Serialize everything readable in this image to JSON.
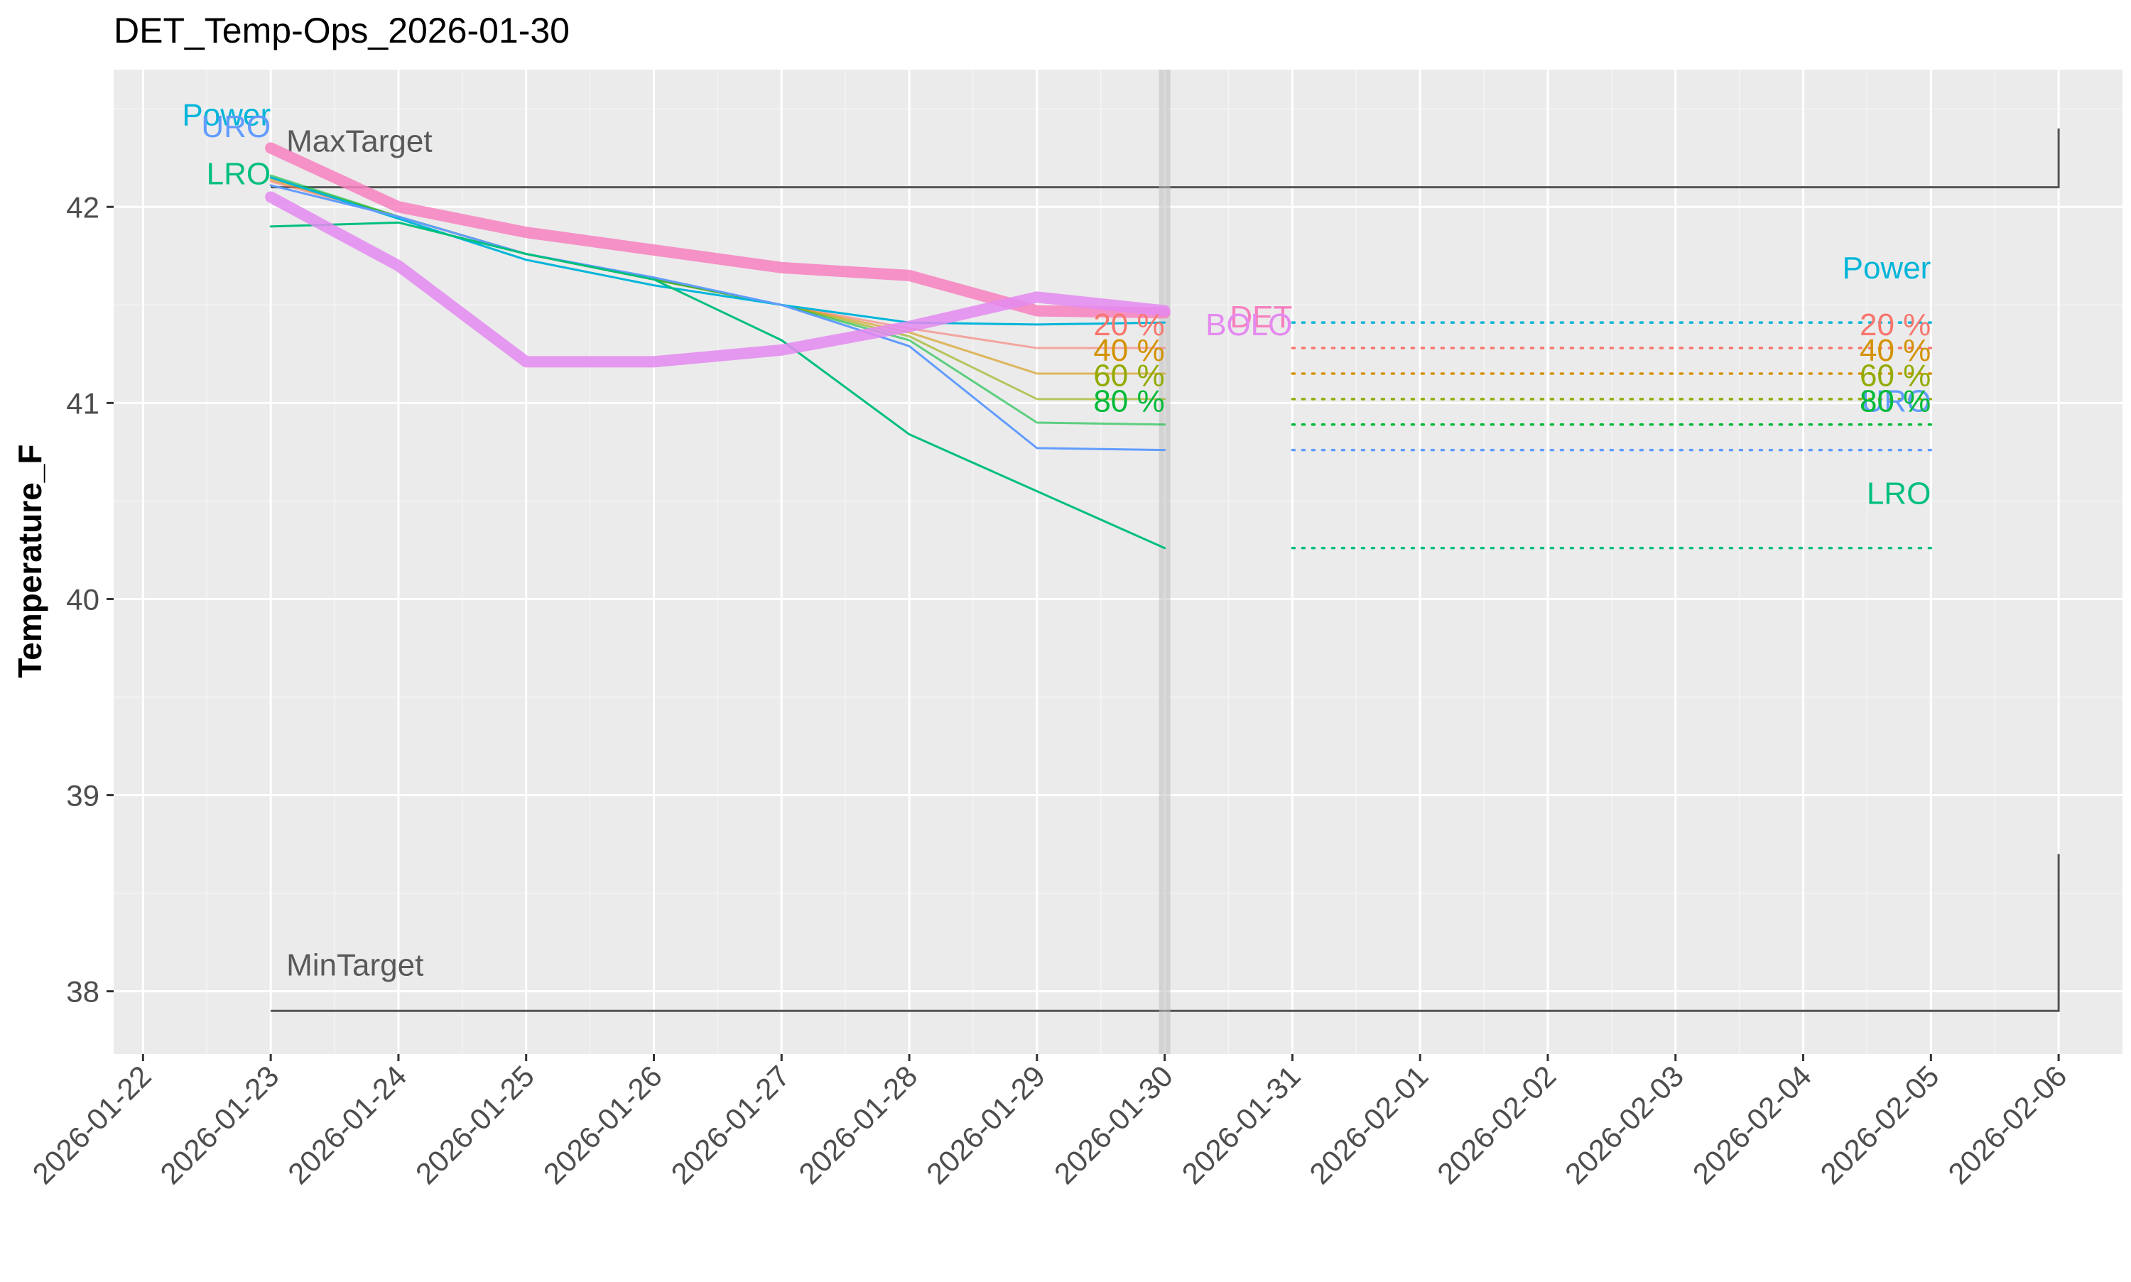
{
  "chart_data": {
    "type": "line",
    "title": "DET_Temp-Ops_2026-01-30",
    "xlabel": "",
    "ylabel": "Temperature_F",
    "x_ticks": [
      "2026-01-22",
      "2026-01-23",
      "2026-01-24",
      "2026-01-25",
      "2026-01-26",
      "2026-01-27",
      "2026-01-28",
      "2026-01-29",
      "2026-01-30",
      "2026-01-31",
      "2026-02-01",
      "2026-02-02",
      "2026-02-03",
      "2026-02-04",
      "2026-02-05",
      "2026-02-06"
    ],
    "y_ticks": [
      38,
      39,
      40,
      41,
      42
    ],
    "xlim": [
      "2026-01-21.77",
      "2026-02-06.5"
    ],
    "ylim": [
      37.68,
      42.7
    ],
    "x_tick_angle": -45,
    "grid": true,
    "legend": "none",
    "current_date": "2026-01-30",
    "colors": {
      "panel_bg": "#EBEBEB",
      "grid_major": "#FFFFFF",
      "grid_minor": "#F5F5F5",
      "DET": "#F781BF",
      "BOLO": "#E48AF0",
      "Power": "#00B5D9",
      "URO": "#619CFF",
      "LRO": "#00BF7D",
      "20 %": "#F8766D",
      "40 %": "#D39200",
      "60 %": "#93AA00",
      "80 %": "#00BA38",
      "target": "#555555",
      "target_label": "#595959"
    },
    "series": [
      {
        "name": "DET",
        "key": "DET",
        "style": "thick",
        "x": [
          "2026-01-23",
          "2026-01-24",
          "2026-01-25",
          "2026-01-26",
          "2026-01-27",
          "2026-01-28",
          "2026-01-29",
          "2026-01-30"
        ],
        "values": [
          42.3,
          42.0,
          41.87,
          41.78,
          41.69,
          41.65,
          41.47,
          41.46
        ]
      },
      {
        "name": "BOLO",
        "key": "BOLO",
        "style": "thick",
        "x": [
          "2026-01-23",
          "2026-01-24",
          "2026-01-25",
          "2026-01-26",
          "2026-01-27",
          "2026-01-28",
          "2026-01-29",
          "2026-01-30"
        ],
        "values": [
          42.05,
          41.7,
          41.21,
          41.21,
          41.27,
          41.39,
          41.54,
          41.47
        ]
      },
      {
        "name": "Power",
        "key": "Power",
        "style": "thin",
        "x": [
          "2026-01-23",
          "2026-01-24",
          "2026-01-25",
          "2026-01-26",
          "2026-01-27",
          "2026-01-28",
          "2026-01-29",
          "2026-01-30"
        ],
        "values": [
          42.15,
          41.94,
          41.73,
          41.6,
          41.5,
          41.41,
          41.4,
          41.41
        ]
      },
      {
        "name": "URO",
        "key": "URO",
        "style": "thin",
        "x": [
          "2026-01-23",
          "2026-01-24",
          "2026-01-25",
          "2026-01-26",
          "2026-01-27",
          "2026-01-28",
          "2026-01-29",
          "2026-01-30"
        ],
        "values": [
          42.11,
          41.95,
          41.76,
          41.64,
          41.5,
          41.29,
          40.77,
          40.76
        ]
      },
      {
        "name": "LRO",
        "key": "LRO",
        "style": "thin",
        "x": [
          "2026-01-23",
          "2026-01-24",
          "2026-01-25",
          "2026-01-26",
          "2026-01-27",
          "2026-01-28",
          "2026-01-29",
          "2026-01-30"
        ],
        "values": [
          41.9,
          41.92,
          41.76,
          41.63,
          41.32,
          40.84,
          40.55,
          40.26
        ]
      },
      {
        "name": "20 %",
        "key": "20 %",
        "style": "thin-faded",
        "x": [
          "2026-01-23",
          "2026-01-24",
          "2026-01-25",
          "2026-01-26",
          "2026-01-27",
          "2026-01-28",
          "2026-01-29",
          "2026-01-30"
        ],
        "values": [
          42.13,
          41.95,
          41.76,
          41.63,
          41.5,
          41.38,
          41.28,
          41.28
        ]
      },
      {
        "name": "40 %",
        "key": "40 %",
        "style": "thin-faded",
        "x": [
          "2026-01-23",
          "2026-01-24",
          "2026-01-25",
          "2026-01-26",
          "2026-01-27",
          "2026-01-28",
          "2026-01-29",
          "2026-01-30"
        ],
        "values": [
          42.14,
          41.95,
          41.76,
          41.63,
          41.5,
          41.36,
          41.15,
          41.15
        ]
      },
      {
        "name": "60 %",
        "key": "60 %",
        "style": "thin-faded",
        "x": [
          "2026-01-23",
          "2026-01-24",
          "2026-01-25",
          "2026-01-26",
          "2026-01-27",
          "2026-01-28",
          "2026-01-29",
          "2026-01-30"
        ],
        "values": [
          42.15,
          41.95,
          41.76,
          41.63,
          41.5,
          41.34,
          41.02,
          41.02
        ]
      },
      {
        "name": "80 %",
        "key": "80 %",
        "style": "thin-faded",
        "x": [
          "2026-01-23",
          "2026-01-24",
          "2026-01-25",
          "2026-01-26",
          "2026-01-27",
          "2026-01-28",
          "2026-01-29",
          "2026-01-30"
        ],
        "values": [
          42.16,
          41.95,
          41.76,
          41.63,
          41.5,
          41.32,
          40.9,
          40.89
        ]
      }
    ],
    "forecasts": [
      {
        "key": "Power",
        "x": [
          "2026-01-31",
          "2026-02-05"
        ],
        "value": 41.41
      },
      {
        "key": "20 %",
        "x": [
          "2026-01-31",
          "2026-02-05"
        ],
        "value": 41.28
      },
      {
        "key": "40 %",
        "x": [
          "2026-01-31",
          "2026-02-05"
        ],
        "value": 41.15
      },
      {
        "key": "60 %",
        "x": [
          "2026-01-31",
          "2026-02-05"
        ],
        "value": 41.02
      },
      {
        "key": "80 %",
        "x": [
          "2026-01-31",
          "2026-02-05"
        ],
        "value": 40.89
      },
      {
        "key": "URO",
        "x": [
          "2026-01-31",
          "2026-02-05"
        ],
        "value": 40.76
      },
      {
        "key": "LRO",
        "x": [
          "2026-01-31",
          "2026-02-05"
        ],
        "value": 40.26
      }
    ],
    "targets": [
      {
        "label": "MaxTarget",
        "value": 42.1,
        "x_start": "2026-01-23",
        "x_end": "2026-02-06",
        "bracket_top": 42.4
      },
      {
        "label": "MinTarget",
        "value": 37.9,
        "x_start": "2026-01-23",
        "x_end": "2026-02-06",
        "bracket_top": 38.7
      }
    ],
    "annotations": [
      {
        "text": "Power",
        "key": "Power",
        "x": "2026-01-23",
        "y": 42.47,
        "anchor": "end"
      },
      {
        "text": "URO",
        "key": "URO",
        "x": "2026-01-23",
        "y": 42.41,
        "anchor": "end"
      },
      {
        "text": "LRO",
        "key": "LRO",
        "x": "2026-01-23",
        "y": 42.17,
        "anchor": "end"
      },
      {
        "text": "20 %",
        "key": "20 %",
        "x": "2026-01-30",
        "y": 41.4,
        "anchor": "end"
      },
      {
        "text": "40 %",
        "key": "40 %",
        "x": "2026-01-30",
        "y": 41.27,
        "anchor": "end"
      },
      {
        "text": "60 %",
        "key": "60 %",
        "x": "2026-01-30",
        "y": 41.14,
        "anchor": "end"
      },
      {
        "text": "80 %",
        "key": "80 %",
        "x": "2026-01-30",
        "y": 41.01,
        "anchor": "end"
      },
      {
        "text": "DET",
        "key": "DET",
        "x": "2026-01-31",
        "y": 41.44,
        "anchor": "end"
      },
      {
        "text": "BOLO",
        "key": "BOLO",
        "x": "2026-01-31",
        "y": 41.4,
        "anchor": "end"
      },
      {
        "text": "Power",
        "key": "Power",
        "x": "2026-02-05",
        "y": 41.69,
        "anchor": "end"
      },
      {
        "text": "20 %",
        "key": "20 %",
        "x": "2026-02-05",
        "y": 41.4,
        "anchor": "end"
      },
      {
        "text": "40 %",
        "key": "40 %",
        "x": "2026-02-05",
        "y": 41.27,
        "anchor": "end"
      },
      {
        "text": "60 %",
        "key": "60 %",
        "x": "2026-02-05",
        "y": 41.14,
        "anchor": "end"
      },
      {
        "text": "URO",
        "key": "URO",
        "x": "2026-02-05",
        "y": 41.01,
        "anchor": "end"
      },
      {
        "text": "80 %",
        "key": "80 %",
        "x": "2026-02-05",
        "y": 41.01,
        "anchor": "end"
      },
      {
        "text": "LRO",
        "key": "LRO",
        "x": "2026-02-05",
        "y": 40.54,
        "anchor": "end"
      }
    ]
  }
}
